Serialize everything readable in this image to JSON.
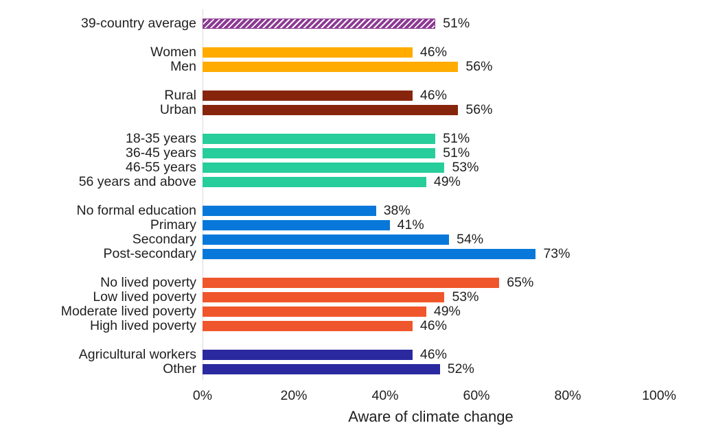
{
  "chart_data": {
    "type": "bar",
    "orientation": "horizontal",
    "title": "",
    "xlabel": "Aware of climate change",
    "ylabel": "",
    "xlim": [
      0,
      100
    ],
    "x_ticks": [
      "0%",
      "20%",
      "40%",
      "60%",
      "80%",
      "100%"
    ],
    "grid": false,
    "legend": "none",
    "axis_line_color": "#d9d9d9",
    "text_color": "#1f1f1f",
    "groups": [
      {
        "name": "average",
        "color": "#8c3a93",
        "hatched": true,
        "bars": [
          {
            "label": "39-country average",
            "value": 51,
            "value_label": "51%"
          }
        ]
      },
      {
        "name": "gender",
        "color": "#ffab00",
        "hatched": false,
        "bars": [
          {
            "label": "Women",
            "value": 46,
            "value_label": "46%"
          },
          {
            "label": "Men",
            "value": 56,
            "value_label": "56%"
          }
        ]
      },
      {
        "name": "location",
        "color": "#87250c",
        "hatched": false,
        "bars": [
          {
            "label": "Rural",
            "value": 46,
            "value_label": "46%"
          },
          {
            "label": "Urban",
            "value": 56,
            "value_label": "56%"
          }
        ]
      },
      {
        "name": "age",
        "color": "#27cd9b",
        "hatched": false,
        "bars": [
          {
            "label": "18-35 years",
            "value": 51,
            "value_label": "51%"
          },
          {
            "label": "36-45 years",
            "value": 51,
            "value_label": "51%"
          },
          {
            "label": "46-55 years",
            "value": 53,
            "value_label": "53%"
          },
          {
            "label": "56 years and above",
            "value": 49,
            "value_label": "49%"
          }
        ]
      },
      {
        "name": "education",
        "color": "#0778d9",
        "hatched": false,
        "bars": [
          {
            "label": "No formal education",
            "value": 38,
            "value_label": "38%"
          },
          {
            "label": "Primary",
            "value": 41,
            "value_label": "41%"
          },
          {
            "label": "Secondary",
            "value": 54,
            "value_label": "54%"
          },
          {
            "label": "Post-secondary",
            "value": 73,
            "value_label": "73%"
          }
        ]
      },
      {
        "name": "lived-poverty",
        "color": "#f0562b",
        "hatched": false,
        "bars": [
          {
            "label": "No lived poverty",
            "value": 65,
            "value_label": "65%"
          },
          {
            "label": "Low lived poverty",
            "value": 53,
            "value_label": "53%"
          },
          {
            "label": "Moderate lived poverty",
            "value": 49,
            "value_label": "49%"
          },
          {
            "label": "High lived poverty",
            "value": 46,
            "value_label": "46%"
          }
        ]
      },
      {
        "name": "occupation",
        "color": "#2b29a0",
        "hatched": false,
        "bars": [
          {
            "label": "Agricultural workers",
            "value": 46,
            "value_label": "46%"
          },
          {
            "label": "Other",
            "value": 52,
            "value_label": "52%"
          }
        ]
      }
    ]
  }
}
